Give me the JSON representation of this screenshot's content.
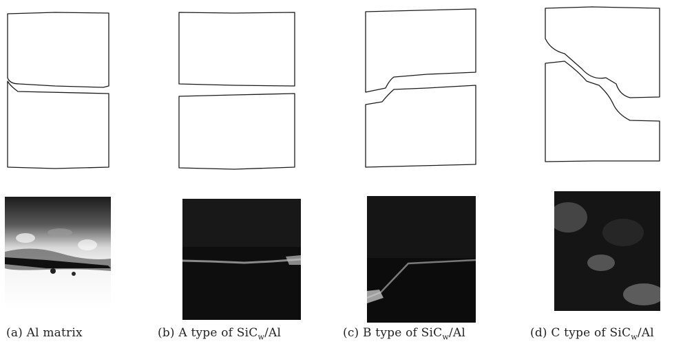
{
  "panels": [
    {
      "id": "a",
      "caption_label": "(a)",
      "caption_text": "Al matrix"
    },
    {
      "id": "b",
      "caption_label": "(b)",
      "caption_text": "A type of SiC",
      "caption_sub": "w",
      "caption_suffix": "/Al"
    },
    {
      "id": "c",
      "caption_label": "(c)",
      "caption_text": "B type of SiC",
      "caption_sub": "w",
      "caption_suffix": "/Al"
    },
    {
      "id": "d",
      "caption_label": "(d)",
      "caption_text": "C type of SiC",
      "caption_sub": "w",
      "caption_suffix": "/Al"
    }
  ]
}
